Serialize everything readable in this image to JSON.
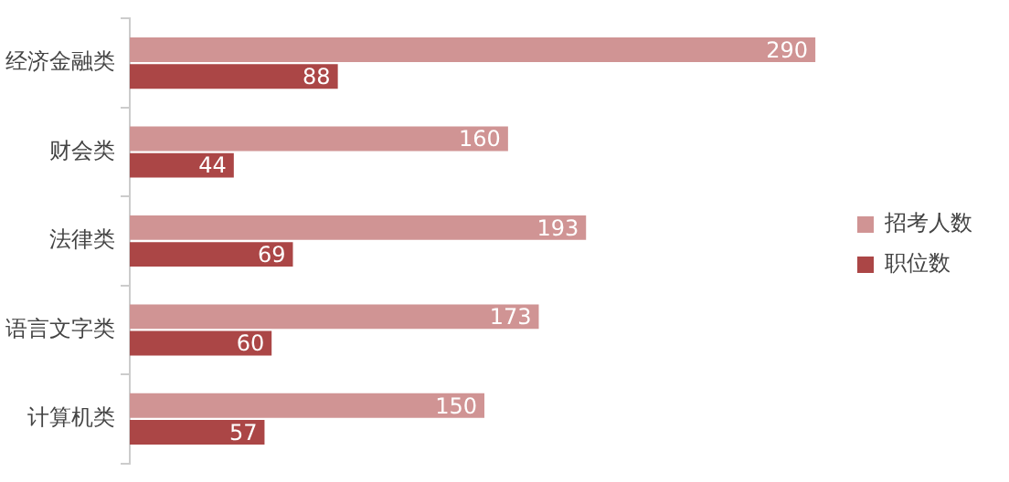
{
  "chart_data": {
    "type": "bar",
    "orientation": "horizontal",
    "categories": [
      "经济金融类",
      "财会类",
      "法律类",
      "语言文字类",
      "计算机类"
    ],
    "series": [
      {
        "name": "招考人数",
        "color": "#d09494",
        "values": [
          290,
          160,
          193,
          173,
          150
        ]
      },
      {
        "name": "职位数",
        "color": "#ab4646",
        "values": [
          88,
          44,
          69,
          60,
          57
        ]
      }
    ],
    "data_labels": true,
    "legend": "right"
  }
}
